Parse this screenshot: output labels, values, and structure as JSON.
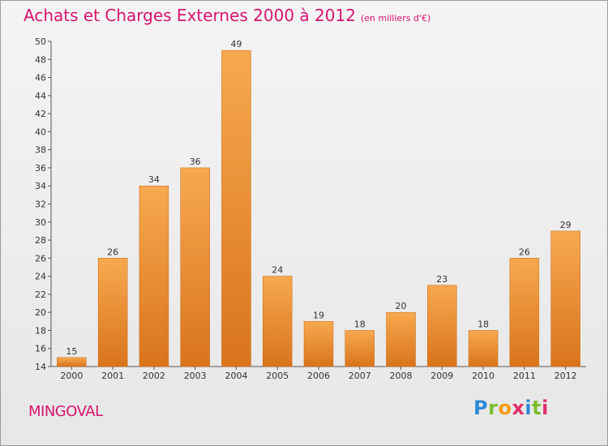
{
  "header": {
    "title": "Achats et Charges Externes 2000 à 2012",
    "subtitle": "(en milliers d'€)"
  },
  "footer": {
    "commune": "MINGOVAL",
    "logo": {
      "letters": [
        "P",
        "r",
        "o",
        "x",
        "i",
        "t",
        "i"
      ],
      "colors": [
        "#2f8ad6",
        "#7bbf2a",
        "#f39b16",
        "#e0306b",
        "#2f8ad6",
        "#7bbf2a",
        "#e0306b"
      ]
    }
  },
  "chart_data": {
    "type": "bar",
    "categories": [
      "2000",
      "2001",
      "2002",
      "2003",
      "2004",
      "2005",
      "2006",
      "2007",
      "2008",
      "2009",
      "2010",
      "2011",
      "2012"
    ],
    "values": [
      15,
      26,
      34,
      36,
      49,
      24,
      19,
      18,
      20,
      23,
      18,
      26,
      29
    ],
    "data_labels": [
      "15",
      "26",
      "34",
      "36",
      "49",
      "24",
      "19",
      "18",
      "20",
      "23",
      "18",
      "26",
      "29"
    ],
    "title": "Achats et Charges Externes 2000 à 2012",
    "subtitle": "(en milliers d'€)",
    "ylim": [
      14,
      50
    ],
    "yticks": [
      "14",
      "16",
      "18",
      "20",
      "22",
      "24",
      "26",
      "28",
      "30",
      "32",
      "34",
      "36",
      "38",
      "40",
      "42",
      "44",
      "46",
      "48",
      "50"
    ],
    "grid": false,
    "legend": "none",
    "colors": {
      "bar_light": "#f7a94f",
      "bar_dark": "#d9741b",
      "title": "#d8146f"
    }
  }
}
